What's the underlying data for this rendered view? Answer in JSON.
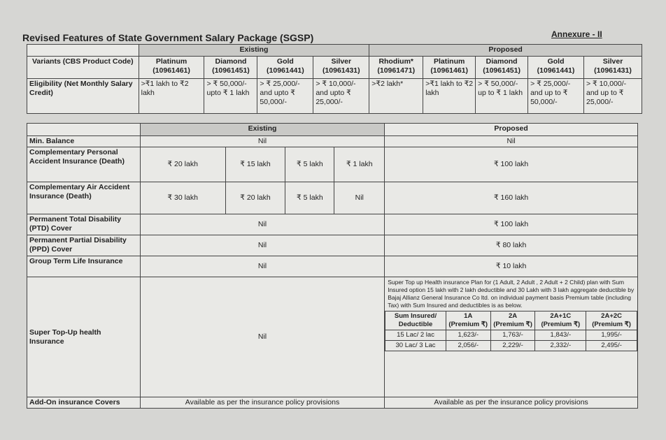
{
  "title": "Revised Features of State Government Salary Package (SGSP)",
  "annexure": "Annexure - II",
  "table1": {
    "existing_label": "Existing",
    "proposed_label": "Proposed",
    "variants_label": "Variants (CBS Product Code)",
    "eligibility_label": "Eligibility (Net Monthly Salary Credit)",
    "existing": [
      {
        "name": "Platinum (10961461)",
        "eligibility": ">₹1 lakh to ₹2 lakh"
      },
      {
        "name": "Diamond (10961451)",
        "eligibility": "> ₹ 50,000/- upto ₹ 1 lakh"
      },
      {
        "name": "Gold (10961441)",
        "eligibility": "> ₹ 25,000/- and upto ₹ 50,000/-"
      },
      {
        "name": "Silver (10961431)",
        "eligibility": "> ₹ 10,000/- and upto ₹ 25,000/-"
      }
    ],
    "proposed": [
      {
        "name": "Rhodium* (10961471)",
        "eligibility": ">₹2 lakh*"
      },
      {
        "name": "Platinum (10961461)",
        "eligibility": ">₹1 lakh to ₹2 lakh"
      },
      {
        "name": "Diamond (10961451)",
        "eligibility": "> ₹ 50,000/- up to ₹ 1 lakh"
      },
      {
        "name": "Gold (10961441)",
        "eligibility": "> ₹ 25,000/- and up to ₹ 50,000/-"
      },
      {
        "name": "Silver (10961431)",
        "eligibility": "> ₹ 10,000/- and up to ₹ 25,000/-"
      }
    ]
  },
  "table2": {
    "existing_label": "Existing",
    "proposed_label": "Proposed",
    "rows": {
      "min_balance": {
        "label": "Min. Balance",
        "existing": "Nil",
        "proposed": "Nil"
      },
      "personal_accident": {
        "label": "Complementary Personal Accident Insurance (Death)",
        "existing": [
          "₹ 20 lakh",
          "₹ 15 lakh",
          "₹ 5 lakh",
          "₹ 1 lakh"
        ],
        "proposed": "₹ 100 lakh"
      },
      "air_accident": {
        "label": "Complementary Air Accident Insurance (Death)",
        "existing": [
          "₹ 30 lakh",
          "₹ 20 lakh",
          "₹ 5 lakh",
          "Nil"
        ],
        "proposed": "₹ 160 lakh"
      },
      "ptd": {
        "label": "Permanent Total Disability (PTD) Cover",
        "existing": "Nil",
        "proposed": "₹ 100 lakh"
      },
      "ppd": {
        "label": "Permanent Partial Disability (PPD) Cover",
        "existing": "Nil",
        "proposed": "₹ 80 lakh"
      },
      "gtl": {
        "label": "Group Term Life Insurance",
        "existing": "Nil",
        "proposed": "₹ 10 lakh"
      },
      "super_topup": {
        "label": "Super Top-Up health Insurance",
        "existing": "Nil",
        "proposed_note": "Super Top up Health insurance Plan for (1 Adult, 2 Adult , 2 Adult + 2 Child) plan with Sum Insured option 15 lakh with 2 lakh deductible and 30 Lakh with 3 lakh aggregate deductible by Bajaj Allianz General Insurance Co ltd. on individual payment basis Premium table (including Tax) with Sum Insured and deductibles is as below.",
        "premium_headers": [
          "Sum Insured/ Deductible",
          "1A (Premium ₹)",
          "2A (Premium ₹)",
          "2A+1C (Premium ₹)",
          "2A+2C (Premium ₹)"
        ],
        "premium_rows": [
          [
            "15 Lac/ 2 lac",
            "1,623/-",
            "1,763/-",
            "1,843/-",
            "1,995/-"
          ],
          [
            "30 Lac/ 3 Lac",
            "2,056/-",
            "2,229/-",
            "2,332/-",
            "2,495/-"
          ]
        ]
      },
      "add_on": {
        "label": "Add-On insurance Covers",
        "existing": "Available as per the insurance policy provisions",
        "proposed": "Available as per the insurance policy provisions"
      }
    }
  }
}
